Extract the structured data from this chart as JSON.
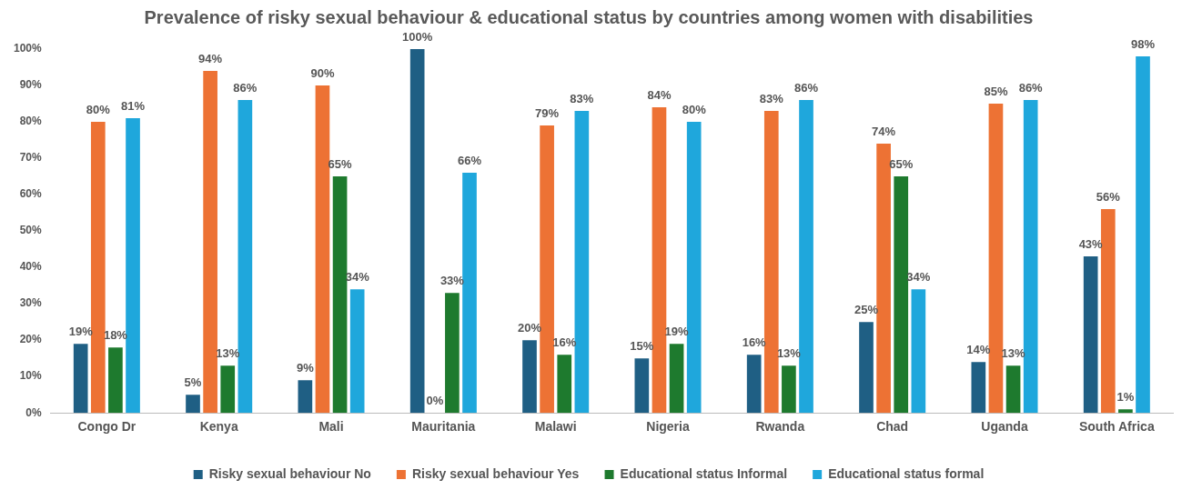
{
  "chart_data": {
    "type": "bar",
    "title": "Prevalence of risky sexual behaviour & educational status by countries among women with disabilities",
    "categories": [
      "Congo Dr",
      "Kenya",
      "Mali",
      "Mauritania",
      "Malawi",
      "Nigeria",
      "Rwanda",
      "Chad",
      "Uganda",
      "South Africa"
    ],
    "series": [
      {
        "name": "Risky sexual behaviour No",
        "color": "#1f5f84",
        "values": [
          19,
          5,
          9,
          100,
          20,
          15,
          16,
          25,
          14,
          43
        ],
        "value_labels": [
          "19%",
          "5%",
          "9%",
          "100%",
          "20%",
          "15%",
          "16%",
          "25%",
          "14%",
          "43%"
        ]
      },
      {
        "name": "Risky sexual behaviour Yes",
        "color": "#ed7234",
        "values": [
          80,
          94,
          90,
          0,
          79,
          84,
          83,
          74,
          85,
          56
        ],
        "value_labels": [
          "80%",
          "94%",
          "90%",
          "0%",
          "79%",
          "84%",
          "83%",
          "74%",
          "85%",
          "56%"
        ]
      },
      {
        "name": "Educational status Informal",
        "color": "#1e7a2e",
        "values": [
          18,
          13,
          65,
          33,
          16,
          19,
          13,
          65,
          13,
          1
        ],
        "value_labels": [
          "18%",
          "13%",
          "65%",
          "33%",
          "16%",
          "19%",
          "13%",
          "65%",
          "13%",
          "1%"
        ]
      },
      {
        "name": "Educational status formal",
        "color": "#1fa7dc",
        "values": [
          81,
          86,
          34,
          66,
          83,
          80,
          86,
          34,
          86,
          98
        ],
        "value_labels": [
          "81%",
          "86%",
          "34%",
          "66%",
          "83%",
          "80%",
          "86%",
          "34%",
          "86%",
          "98%"
        ]
      }
    ],
    "ylim": [
      0,
      100
    ],
    "yticks": [
      {
        "value": 0,
        "label": "0%"
      },
      {
        "value": 10,
        "label": "10%"
      },
      {
        "value": 20,
        "label": "20%"
      },
      {
        "value": 30,
        "label": "30%"
      },
      {
        "value": 40,
        "label": "40%"
      },
      {
        "value": 50,
        "label": "50%"
      },
      {
        "value": 60,
        "label": "60%"
      },
      {
        "value": 70,
        "label": "70%"
      },
      {
        "value": 80,
        "label": "80%"
      },
      {
        "value": 90,
        "label": "90%"
      },
      {
        "value": 100,
        "label": "100%"
      }
    ],
    "grid": false,
    "legend": "bottom"
  }
}
